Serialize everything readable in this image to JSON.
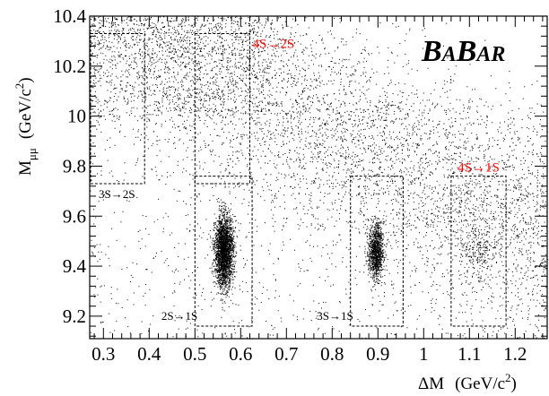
{
  "chart_data": {
    "type": "scatter",
    "brand": {
      "big1": "B",
      "small1": "A",
      "big2": "B",
      "small2": "AR"
    },
    "xlabel": {
      "main": "ΔM",
      "unit": "(GeV/c",
      "sup": "2",
      "close": ")"
    },
    "ylabel": {
      "main": "M",
      "sub": "μμ",
      "unit": "(GeV/c",
      "sup": "2",
      "close": ")"
    },
    "xlim": [
      0.27,
      1.27
    ],
    "ylim": [
      9.11,
      10.4
    ],
    "x_ticks": [
      0.3,
      0.4,
      0.5,
      0.6,
      0.7,
      0.8,
      0.9,
      1,
      1.1,
      1.2
    ],
    "x_tick_labels": [
      "0.3",
      "0.4",
      "0.5",
      "0.6",
      "0.7",
      "0.8",
      "0.9",
      "1",
      "1.1",
      "1.2"
    ],
    "y_ticks": [
      9.2,
      9.4,
      9.6,
      9.8,
      10,
      10.2,
      10.4
    ],
    "y_tick_labels": [
      "9.2",
      "9.4",
      "9.6",
      "9.8",
      "10",
      "10.2",
      "10.4"
    ],
    "grid": false,
    "selection_boxes": [
      {
        "label": "3S→2S",
        "x": [
          0.27,
          0.39
        ],
        "y": [
          9.73,
          10.33
        ],
        "label_color": "#000000"
      },
      {
        "label": "4S→2S",
        "x": [
          0.5,
          0.62
        ],
        "y": [
          9.73,
          10.33
        ],
        "label_color": "#ff0000"
      },
      {
        "label": "2S→1S",
        "x": [
          0.5,
          0.625
        ],
        "y": [
          9.16,
          9.76
        ],
        "label_color": "#000000"
      },
      {
        "label": "3S→1S",
        "x": [
          0.84,
          0.955
        ],
        "y": [
          9.16,
          9.76
        ],
        "label_color": "#000000"
      },
      {
        "label": "4S→1S",
        "x": [
          1.06,
          1.18
        ],
        "y": [
          9.16,
          9.76
        ],
        "label_color": "#ff0000"
      }
    ],
    "peaks": [
      {
        "transition": "2S→1S",
        "x": 0.563,
        "y": 9.46
      },
      {
        "transition": "3S→1S",
        "x": 0.895,
        "y": 9.46
      },
      {
        "transition": "4S→1S",
        "x": 1.119,
        "y": 9.46
      }
    ],
    "colors": {
      "points": "#000000",
      "highlight_labels": "#ff0000",
      "boxes": "#000000"
    }
  }
}
